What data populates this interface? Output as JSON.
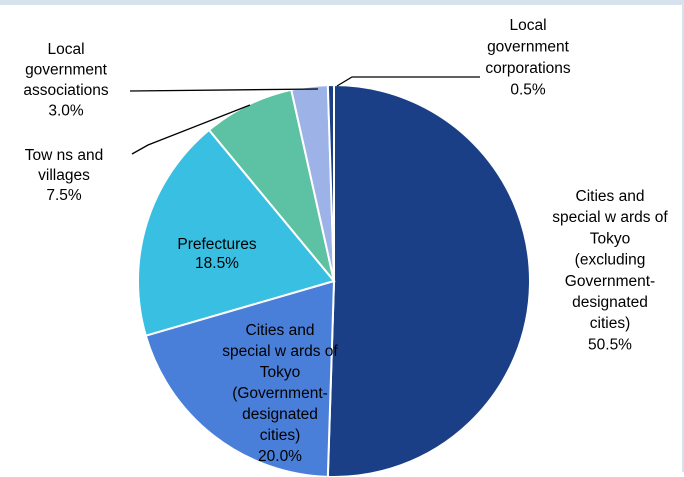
{
  "chart_data": {
    "type": "pie",
    "title": "",
    "categories": [
      "Cities and special wards of Tokyo (excluding Government-designated cities)",
      "Cities and special wards of Tokyo (Government-designated cities)",
      "Prefectures",
      "Towns and villages",
      "Local government associations",
      "Local government corporations"
    ],
    "values": [
      50.5,
      20.0,
      18.5,
      7.5,
      3.0,
      0.5
    ],
    "value_labels": [
      "50.5%",
      "20.0%",
      "18.5%",
      "7.5%",
      "3.0%",
      "0.5%"
    ],
    "label_lines": [
      [
        "Cities and",
        "special w ards of",
        "Tokyo",
        "(excluding",
        "Government-",
        "designated",
        "cities)"
      ],
      [
        "Cities and",
        "special w ards of",
        "Tokyo",
        "(Government-",
        "designated",
        "cities)"
      ],
      [
        "Prefectures"
      ],
      [
        "Tow ns and",
        "villages"
      ],
      [
        "Local",
        "government",
        "associations"
      ],
      [
        "Local",
        "government",
        "corporations"
      ]
    ],
    "colors": [
      "#1b3f86",
      "#4a7fd9",
      "#39bfe2",
      "#5dc1a3",
      "#9db3e8",
      "#1b3f86"
    ],
    "start_angle_deg": 0,
    "direction": "clockwise",
    "legend": "none"
  }
}
